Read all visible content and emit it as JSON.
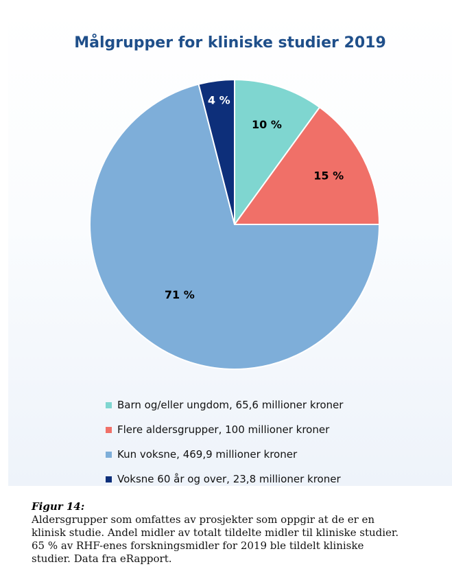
{
  "chart_data": {
    "type": "pie",
    "title": "Målgrupper for kliniske studier 2019",
    "slices": [
      {
        "label": "Barn og/eller ungdom, 65,6 millioner kroner",
        "value": 10,
        "display": "10 %",
        "color": "#7fd6d0",
        "label_color": "#000000"
      },
      {
        "label": "Flere aldersgrupper, 100 millioner kroner",
        "value": 15,
        "display": "15 %",
        "color": "#f07068",
        "label_color": "#000000"
      },
      {
        "label": "Kun voksne, 469,9 millioner kroner",
        "value": 71,
        "display": "71 %",
        "color": "#7eaed9",
        "label_color": "#000000"
      },
      {
        "label": "Voksne 60 år og over, 23,8 millioner kroner",
        "value": 4,
        "display": "4 %",
        "color": "#0d2f7a",
        "label_color": "#ffffff"
      }
    ],
    "legend": "bottom"
  },
  "caption": {
    "title": "Figur 14:",
    "lines": [
      "Aldersgrupper som omfattes av prosjekter som oppgir at de er en",
      "klinisk studie. Andel midler av totalt tildelte midler til kliniske studier.",
      "65 % av RHF-enes forskningsmidler for 2019 ble tildelt kliniske",
      "studier. Data fra eRapport."
    ]
  }
}
